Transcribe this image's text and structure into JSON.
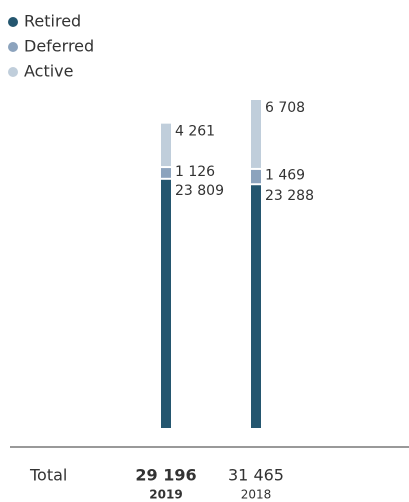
{
  "chart_data": {
    "type": "stacked_bar",
    "categories": [
      "2019",
      "2018"
    ],
    "series": [
      {
        "name": "Active",
        "color": "#24566f",
        "values": [
          23809,
          23288
        ],
        "value_labels": [
          "23 809",
          "23 288"
        ]
      },
      {
        "name": "Deferred",
        "color": "#8ca3bd",
        "values": [
          1126,
          1469
        ],
        "value_labels": [
          "1 126",
          "1 469"
        ]
      },
      {
        "name": "Retired",
        "color": "#c0cedb",
        "values": [
          4261,
          6708
        ],
        "value_labels": [
          "4 261",
          "6 708"
        ]
      }
    ],
    "total_label": "Total",
    "totals": [
      {
        "value": 29196,
        "label": "29 196"
      },
      {
        "value": 31465,
        "label": "31 465"
      }
    ],
    "legend": "top-left"
  }
}
